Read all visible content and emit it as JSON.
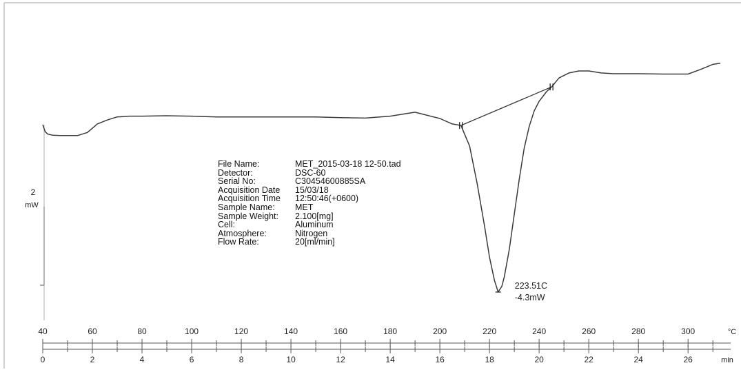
{
  "chart_data": {
    "type": "line",
    "title": "",
    "y_scale": {
      "bar_value": "2",
      "unit": "mW"
    },
    "x_axis_temperature": {
      "unit": "°C",
      "ticks": [
        "40",
        "60",
        "80",
        "100",
        "120",
        "140",
        "160",
        "180",
        "200",
        "220",
        "240",
        "260",
        "280",
        "300"
      ],
      "range": [
        40,
        313
      ]
    },
    "x_axis_time": {
      "unit": "min",
      "ticks": [
        "0",
        "2",
        "4",
        "6",
        "8",
        "10",
        "12",
        "14",
        "16",
        "18",
        "20",
        "22",
        "24",
        "26"
      ],
      "range": [
        0,
        27.3
      ]
    },
    "series": [
      {
        "x_temperature_c": [
          40,
          41,
          42,
          44,
          47,
          50,
          54,
          58,
          62,
          66,
          70,
          75,
          80,
          90,
          100,
          110,
          120,
          130,
          140,
          150,
          160,
          170,
          180,
          190,
          200,
          205,
          208.5,
          212,
          215,
          218,
          220,
          222,
          223.5,
          225,
          226,
          228,
          230,
          232,
          234,
          236,
          238,
          240,
          243,
          245,
          248,
          252,
          256,
          260,
          265,
          270,
          280,
          290,
          300,
          305,
          310,
          313
        ],
        "y_mw_relative": [
          0,
          -0.18,
          -0.24,
          -0.27,
          -0.28,
          -0.28,
          -0.28,
          -0.2,
          0.02,
          0.12,
          0.2,
          0.22,
          0.22,
          0.23,
          0.22,
          0.2,
          0.2,
          0.2,
          0.2,
          0.2,
          0.18,
          0.17,
          0.22,
          0.32,
          0.16,
          0.02,
          -0.02,
          -0.55,
          -1.5,
          -2.6,
          -3.4,
          -4.0,
          -4.3,
          -4.15,
          -3.9,
          -3.2,
          -2.3,
          -1.4,
          -0.6,
          -0.05,
          0.35,
          0.6,
          0.85,
          0.97,
          1.2,
          1.33,
          1.38,
          1.38,
          1.33,
          1.31,
          1.31,
          1.3,
          1.3,
          1.42,
          1.55,
          1.58
        ]
      }
    ],
    "baseline_segment": {
      "x": [
        208.5,
        245
      ],
      "y": [
        -0.02,
        0.97
      ]
    },
    "annotations": [
      {
        "label_x": "223.51C",
        "label_y": "-4.3mW",
        "x": 223.51,
        "y": -4.3
      }
    ],
    "info_table": [
      {
        "key": "File Name:",
        "value": "MET_2015-03-18 12-50.tad"
      },
      {
        "key": "Detector:",
        "value": "DSC-60"
      },
      {
        "key": "Serial No:",
        "value": "C30454600885SA"
      },
      {
        "key": "Acquisition Date",
        "value": "15/03/18"
      },
      {
        "key": "Acquisition Time",
        "value": "12:50:46(+0600)"
      },
      {
        "key": "Sample Name:",
        "value": "MET"
      },
      {
        "key": "Sample Weight:",
        "value": "2.100[mg]"
      },
      {
        "key": "Cell:",
        "value": "Aluminum"
      },
      {
        "key": "Atmosphere:",
        "value": "Nitrogen"
      },
      {
        "key": "Flow Rate:",
        "value": "20[ml/min]"
      }
    ],
    "colors": {
      "trace": "#3a3a3a",
      "axis": "#555555",
      "frame": "#bdbdbd"
    }
  }
}
